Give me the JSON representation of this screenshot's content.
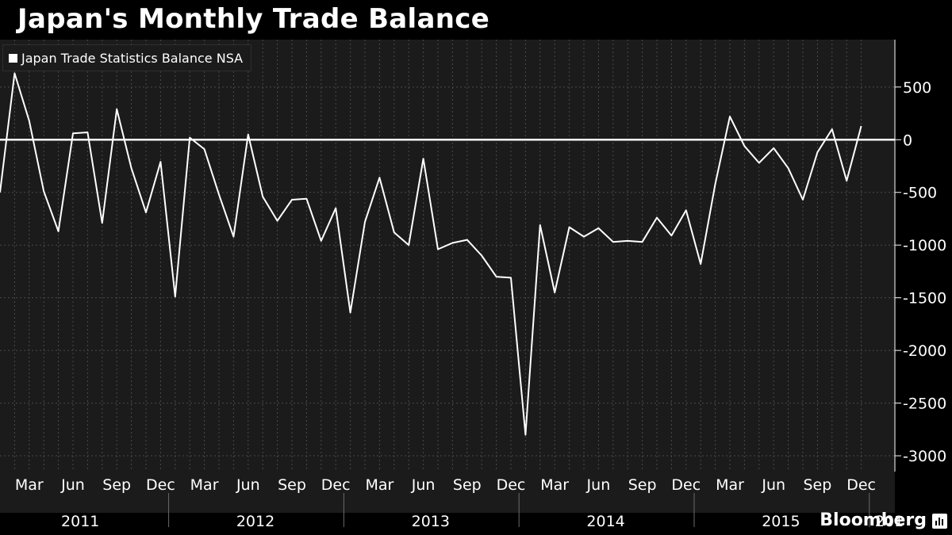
{
  "title": "Japan's Monthly Trade Balance",
  "brand": "Bloomberg",
  "brand_icon": "bloomberg-chart-icon",
  "colors": {
    "background": "#000000",
    "plot": "#1b1b1b",
    "line": "#ffffff",
    "grid": "#4a4a4a"
  },
  "chart_data": {
    "type": "line",
    "title": "Japan's Monthly Trade Balance",
    "xlabel": "",
    "ylabel": "",
    "ylim": [
      -3150,
      950
    ],
    "yticks": [
      500,
      0,
      -500,
      -1000,
      -1500,
      -2000,
      -2500,
      -3000
    ],
    "ytick_labels": [
      "500",
      "0",
      "-500",
      "-1000",
      "-1500",
      "-2000",
      "-2500",
      "-3000"
    ],
    "grid": true,
    "legend": "top-left",
    "x_start": "2011-01",
    "month_labels": [
      "Mar",
      "Jun",
      "Sep",
      "Dec",
      "Mar",
      "Jun",
      "Sep",
      "Dec",
      "Mar",
      "Jun",
      "Sep",
      "Dec",
      "Mar",
      "Jun",
      "Sep",
      "Dec",
      "Mar",
      "Jun",
      "Sep",
      "Dec"
    ],
    "year_labels": [
      "2011",
      "2012",
      "2013",
      "2014",
      "2015",
      "201"
    ],
    "series": [
      {
        "name": "Japan Trade Statistics Balance NSA",
        "color": "#ffffff",
        "values": [
          -500,
          630,
          180,
          -490,
          -870,
          60,
          70,
          -790,
          290,
          -270,
          -690,
          -210,
          -1490,
          20,
          -90,
          -520,
          -920,
          50,
          -540,
          -770,
          -570,
          -560,
          -960,
          -650,
          -1640,
          -780,
          -360,
          -880,
          -1000,
          -180,
          -1040,
          -980,
          -950,
          -1100,
          -1300,
          -1310,
          -2800,
          -810,
          -1450,
          -830,
          -920,
          -840,
          -970,
          -960,
          -970,
          -740,
          -910,
          -670,
          -1180,
          -420,
          220,
          -60,
          -220,
          -80,
          -270,
          -570,
          -120,
          100,
          -390,
          130
        ]
      }
    ]
  }
}
